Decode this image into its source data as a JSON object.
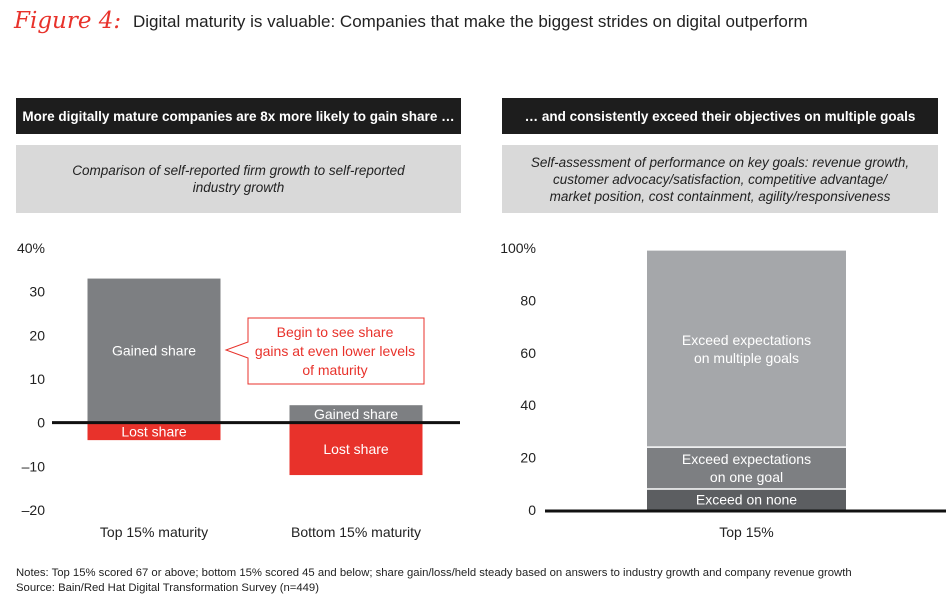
{
  "figure": {
    "label": "Figure 4:",
    "title": "Digital maturity is valuable: Companies that make the biggest strides on digital outperform"
  },
  "left_panel": {
    "header": "More digitally mature companies are 8x more likely to gain share …",
    "subtitle_lines": [
      "Comparison of self-reported firm growth to self-reported",
      "industry growth"
    ]
  },
  "right_panel": {
    "header": "… and consistently exceed their objectives on multiple goals",
    "subtitle_lines": [
      "Self-assessment of performance on key goals: revenue growth,",
      "customer advocacy/satisfaction, competitive advantage/",
      "market position, cost containment, agility/responsiveness"
    ]
  },
  "chart_data": [
    {
      "type": "bar",
      "categories": [
        "Top 15% maturity",
        "Bottom 15% maturity"
      ],
      "series": [
        {
          "name": "Gained share",
          "values": [
            33,
            4
          ],
          "color": "#7d7f82"
        },
        {
          "name": "Lost share",
          "values": [
            -4,
            -12
          ],
          "color": "#e8322b"
        }
      ],
      "ylim": [
        -20,
        40
      ],
      "y_ticks": [
        -20,
        -10,
        0,
        10,
        20,
        30,
        40
      ],
      "y_tick_labels": [
        "–20",
        "–10",
        "0",
        "10",
        "20",
        "30",
        "40%"
      ],
      "annotation": {
        "lines": [
          "Begin to see share",
          "gains at even lower levels",
          "of maturity"
        ],
        "color": "#e8322b"
      }
    },
    {
      "type": "bar",
      "stacked": true,
      "categories": [
        "Top 15%"
      ],
      "series": [
        {
          "name": "Exceed on none",
          "lines": [
            "Exceed on none"
          ],
          "values": [
            8
          ],
          "color": "#5c5e61"
        },
        {
          "name": "Exceed expectations on one goal",
          "lines": [
            "Exceed expectations",
            "on one goal"
          ],
          "values": [
            16
          ],
          "color": "#7d7f82"
        },
        {
          "name": "Exceed expectations on multiple goals",
          "lines": [
            "Exceed expectations",
            "on multiple goals"
          ],
          "values": [
            75
          ],
          "color": "#a5a7aa"
        }
      ],
      "ylim": [
        0,
        100
      ],
      "y_ticks": [
        0,
        20,
        40,
        60,
        80,
        100
      ],
      "y_tick_labels": [
        "0",
        "20",
        "40",
        "60",
        "80",
        "100%"
      ]
    }
  ],
  "notes": [
    "Notes: Top 15% scored 67 or above; bottom 15% scored 45 and below; share gain/loss/held steady based on answers to industry growth and company revenue growth",
    "Source: Bain/Red Hat Digital Transformation Survey (n=449)"
  ]
}
